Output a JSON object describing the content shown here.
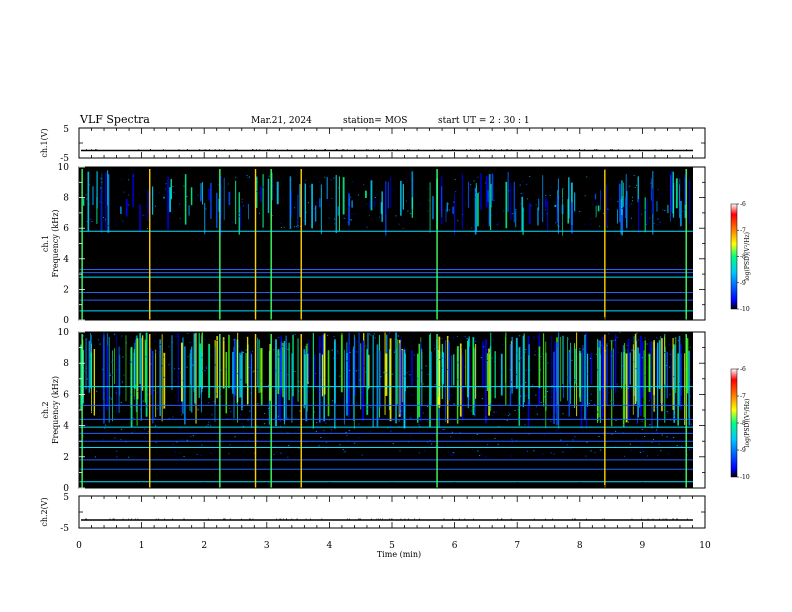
{
  "chart_data": {
    "type": "heatmap",
    "title": "VLF Spectra",
    "date": "Mar.21, 2024",
    "station": "station= MOS",
    "start_ut": "start  UT =   2 : 30 : 1",
    "x_axis": {
      "label": "Time  (min)",
      "range": [
        0,
        10
      ],
      "ticks": [
        "0",
        "1",
        "2",
        "3",
        "4",
        "5",
        "6",
        "7",
        "8",
        "9",
        "10"
      ]
    },
    "voltage_panels": [
      {
        "label": "ch.1(V)",
        "ylim": [
          -5,
          5
        ],
        "ticks": [
          "5",
          "-5"
        ],
        "level": -2.5
      },
      {
        "label": "ch.2(V)",
        "ylim": [
          -5,
          5
        ],
        "ticks": [
          "5",
          "-5"
        ],
        "level": -2.5
      }
    ],
    "spectrogram_panels": [
      {
        "channel_label": "ch.1",
        "ylabel": "Frequency (kHz)",
        "ylim": [
          0,
          10
        ],
        "ticks": [
          "0",
          "2",
          "4",
          "6",
          "8",
          "10"
        ],
        "persistent_lines_khz": [
          0.6,
          1.3,
          1.8,
          2.8,
          3.1,
          3.3,
          5.8
        ],
        "broadband_events_min": [
          0.05,
          1.13,
          2.25,
          2.82,
          3.07,
          3.55,
          5.72,
          8.4,
          9.7
        ]
      },
      {
        "channel_label": "ch.2",
        "ylabel": "Frequency (kHz)",
        "ylim": [
          0,
          10
        ],
        "ticks": [
          "0",
          "2",
          "4",
          "6",
          "8",
          "10"
        ],
        "persistent_lines_khz": [
          0.4,
          1.2,
          1.8,
          2.6,
          3.0,
          3.5,
          3.9,
          4.4,
          5.3,
          6.5
        ],
        "broadband_events_min": [
          0.05,
          1.13,
          2.25,
          2.82,
          3.07,
          3.55,
          5.72,
          8.4,
          9.7
        ]
      }
    ],
    "colorbar": {
      "label": "log(PSD)(V²/Hz)",
      "range": [
        -10,
        -6
      ],
      "ticks": [
        "-6",
        "-7",
        "-8",
        "-9",
        "-10"
      ],
      "colors": [
        "#000000",
        "#0000ff",
        "#00c8ff",
        "#00ff80",
        "#ffff00",
        "#ff8000",
        "#ff0000",
        "#ffffff"
      ]
    }
  }
}
